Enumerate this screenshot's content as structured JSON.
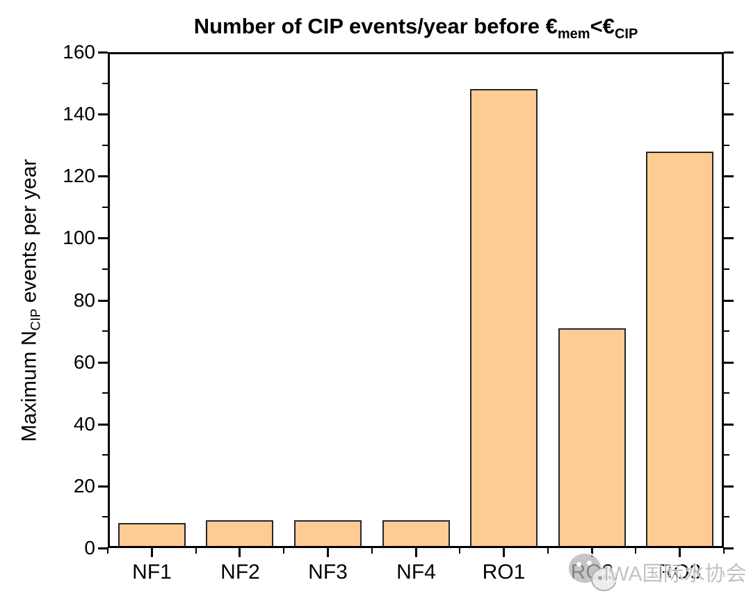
{
  "chart_data": {
    "type": "bar",
    "title": {
      "prefix": "Number of CIP events/year before €",
      "sub1": "mem",
      "mid": "<€",
      "sub2": "CIP"
    },
    "ylabel": {
      "prefix": "Maximum N",
      "sub": "CIP",
      "suffix": " events per year"
    },
    "xlabel": "",
    "categories": [
      "NF1",
      "NF2",
      "NF3",
      "NF4",
      "RO1",
      "RO2",
      "RO3"
    ],
    "values": [
      8,
      9,
      9,
      9,
      148,
      71,
      128
    ],
    "ylim": [
      0,
      160
    ],
    "y_major_step": 20,
    "y_minor_step": 10,
    "y_tick_labels": [
      "0",
      "20",
      "40",
      "60",
      "80",
      "100",
      "120",
      "140",
      "160"
    ],
    "grid": false,
    "legend": null,
    "bar_fill_color": "#FDCB94",
    "bar_border_color": "#262626",
    "axis_color": "#000000"
  },
  "watermark": {
    "icon": "wechat-logo-icon",
    "text": "IWA国际水协会"
  }
}
